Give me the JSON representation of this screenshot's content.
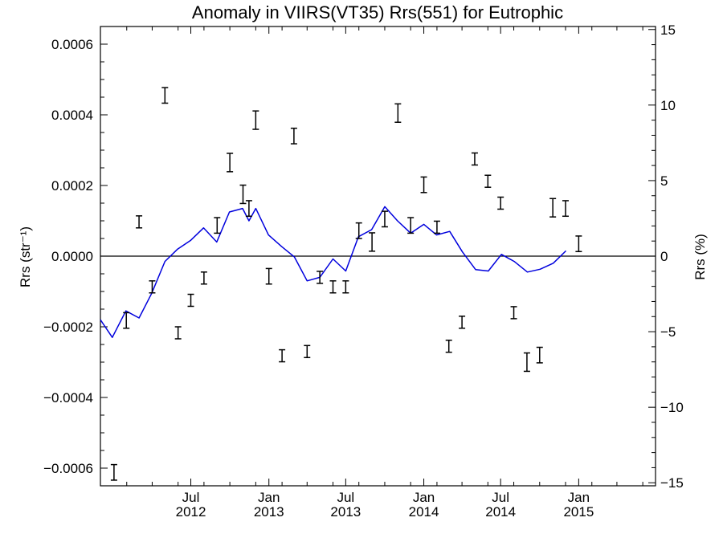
{
  "chart_data": {
    "type": "line",
    "title": "Anomaly in VIIRS(VT35) Rrs(551) for Eutrophic",
    "ylabel_left": "Rrs (str⁻¹)",
    "ylabel_right": "Rrs (%)",
    "xlabel": "",
    "x_range": [
      "2011-12-01",
      "2015-07-01"
    ],
    "ylim_left": [
      -0.00065,
      0.00065
    ],
    "ylim_right": [
      -15.2,
      15.2
    ],
    "grid": false,
    "legend": "none",
    "zero_line": 0,
    "left_ticks": [
      "0.0006",
      "0.0004",
      "0.0002",
      "0.0000",
      "−0.0002",
      "−0.0004",
      "−0.0006"
    ],
    "left_tick_values": [
      0.0006,
      0.0004,
      0.0002,
      0.0,
      -0.0002,
      -0.0004,
      -0.0006
    ],
    "right_ticks": [
      "15",
      "10",
      "5",
      "0",
      "−5",
      "−10",
      "−15"
    ],
    "right_tick_values": [
      15,
      10,
      5,
      0,
      -5,
      -10,
      -15
    ],
    "x_ticks": [
      {
        "date": "2012-07-01",
        "month": "Jul",
        "year": "2012"
      },
      {
        "date": "2013-01-01",
        "month": "Jan",
        "year": "2013"
      },
      {
        "date": "2013-07-01",
        "month": "Jul",
        "year": "2013"
      },
      {
        "date": "2014-01-01",
        "month": "Jan",
        "year": "2014"
      },
      {
        "date": "2014-07-01",
        "month": "Jul",
        "year": "2014"
      },
      {
        "date": "2015-01-01",
        "month": "Jan",
        "year": "2015"
      }
    ],
    "series": [
      {
        "kind": "line",
        "color": "#0000dd",
        "points": [
          [
            "2011-12-01",
            -0.00018
          ],
          [
            "2011-12-29",
            -0.00023
          ],
          [
            "2012-01-30",
            -0.000155
          ],
          [
            "2012-03-01",
            -0.000175
          ],
          [
            "2012-03-31",
            -0.000105
          ],
          [
            "2012-05-01",
            -1.5e-05
          ],
          [
            "2012-05-31",
            2e-05
          ],
          [
            "2012-07-01",
            4.5e-05
          ],
          [
            "2012-07-31",
            8e-05
          ],
          [
            "2012-08-31",
            4e-05
          ],
          [
            "2012-09-30",
            0.000125
          ],
          [
            "2012-10-31",
            0.000135
          ],
          [
            "2012-11-15",
            0.0001
          ],
          [
            "2012-12-01",
            0.000135
          ],
          [
            "2012-12-31",
            6e-05
          ],
          [
            "2013-01-31",
            2.7e-05
          ],
          [
            "2013-03-02",
            -2e-06
          ],
          [
            "2013-04-01",
            -7e-05
          ],
          [
            "2013-05-01",
            -6e-05
          ],
          [
            "2013-06-01",
            -8e-06
          ],
          [
            "2013-07-01",
            -4.2e-05
          ],
          [
            "2013-07-31",
            5.5e-05
          ],
          [
            "2013-08-31",
            7.5e-05
          ],
          [
            "2013-10-01",
            0.00014
          ],
          [
            "2013-10-31",
            0.0001
          ],
          [
            "2013-12-01",
            6.5e-05
          ],
          [
            "2014-01-01",
            9e-05
          ],
          [
            "2014-01-31",
            6e-05
          ],
          [
            "2014-03-03",
            7e-05
          ],
          [
            "2014-04-02",
            1.2e-05
          ],
          [
            "2014-05-03",
            -3.8e-05
          ],
          [
            "2014-06-02",
            -4.2e-05
          ],
          [
            "2014-07-03",
            5e-06
          ],
          [
            "2014-08-02",
            -1.5e-05
          ],
          [
            "2014-09-02",
            -4.5e-05
          ],
          [
            "2014-10-02",
            -3.7e-05
          ],
          [
            "2014-11-02",
            -2e-05
          ],
          [
            "2014-12-02",
            1.5e-05
          ]
        ]
      },
      {
        "kind": "errorbar",
        "color": "#000000",
        "points": [
          {
            "x": "2012-01-02",
            "y": -0.000612,
            "err": 2.2e-05
          },
          {
            "x": "2012-01-31",
            "y": -0.000182,
            "err": 2.2e-05
          },
          {
            "x": "2012-03-01",
            "y": 9.7e-05,
            "err": 1.7e-05
          },
          {
            "x": "2012-04-01",
            "y": -8.7e-05,
            "err": 1.7e-05
          },
          {
            "x": "2012-05-01",
            "y": 0.000455,
            "err": 2.2e-05
          },
          {
            "x": "2012-06-01",
            "y": -0.000217,
            "err": 1.7e-05
          },
          {
            "x": "2012-07-01",
            "y": -0.000125,
            "err": 1.7e-05
          },
          {
            "x": "2012-08-01",
            "y": -6.2e-05,
            "err": 1.7e-05
          },
          {
            "x": "2012-09-01",
            "y": 8.7e-05,
            "err": 2.2e-05
          },
          {
            "x": "2012-10-01",
            "y": 0.000265,
            "err": 2.6e-05
          },
          {
            "x": "2012-11-01",
            "y": 0.000175,
            "err": 2.6e-05
          },
          {
            "x": "2012-11-15",
            "y": 0.000135,
            "err": 2.2e-05
          },
          {
            "x": "2012-12-01",
            "y": 0.000385,
            "err": 2.6e-05
          },
          {
            "x": "2013-01-01",
            "y": -5.7e-05,
            "err": 2.2e-05
          },
          {
            "x": "2013-02-01",
            "y": -0.000282,
            "err": 1.7e-05
          },
          {
            "x": "2013-03-01",
            "y": 0.00034,
            "err": 2.2e-05
          },
          {
            "x": "2013-04-01",
            "y": -0.00027,
            "err": 1.7e-05
          },
          {
            "x": "2013-05-01",
            "y": -6e-05,
            "err": 1.7e-05
          },
          {
            "x": "2013-06-01",
            "y": -8.7e-05,
            "err": 1.7e-05
          },
          {
            "x": "2013-07-01",
            "y": -8.7e-05,
            "err": 1.7e-05
          },
          {
            "x": "2013-08-01",
            "y": 7.2e-05,
            "err": 2.2e-05
          },
          {
            "x": "2013-09-01",
            "y": 4e-05,
            "err": 2.6e-05
          },
          {
            "x": "2013-10-01",
            "y": 0.000105,
            "err": 2.2e-05
          },
          {
            "x": "2013-11-01",
            "y": 0.000405,
            "err": 2.6e-05
          },
          {
            "x": "2013-12-01",
            "y": 8.7e-05,
            "err": 2.2e-05
          },
          {
            "x": "2014-01-01",
            "y": 0.000202,
            "err": 2.2e-05
          },
          {
            "x": "2014-02-01",
            "y": 8.2e-05,
            "err": 1.7e-05
          },
          {
            "x": "2014-03-01",
            "y": -0.000255,
            "err": 1.7e-05
          },
          {
            "x": "2014-04-01",
            "y": -0.000187,
            "err": 1.7e-05
          },
          {
            "x": "2014-05-01",
            "y": 0.000275,
            "err": 1.7e-05
          },
          {
            "x": "2014-06-01",
            "y": 0.000212,
            "err": 1.7e-05
          },
          {
            "x": "2014-07-01",
            "y": 0.00015,
            "err": 1.7e-05
          },
          {
            "x": "2014-08-01",
            "y": -0.00016,
            "err": 1.7e-05
          },
          {
            "x": "2014-09-01",
            "y": -0.0003,
            "err": 2.6e-05
          },
          {
            "x": "2014-10-01",
            "y": -0.00028,
            "err": 2.2e-05
          },
          {
            "x": "2014-11-01",
            "y": 0.000137,
            "err": 2.6e-05
          },
          {
            "x": "2014-12-01",
            "y": 0.000135,
            "err": 2.2e-05
          },
          {
            "x": "2015-01-01",
            "y": 3.5e-05,
            "err": 2.2e-05
          }
        ]
      }
    ]
  }
}
